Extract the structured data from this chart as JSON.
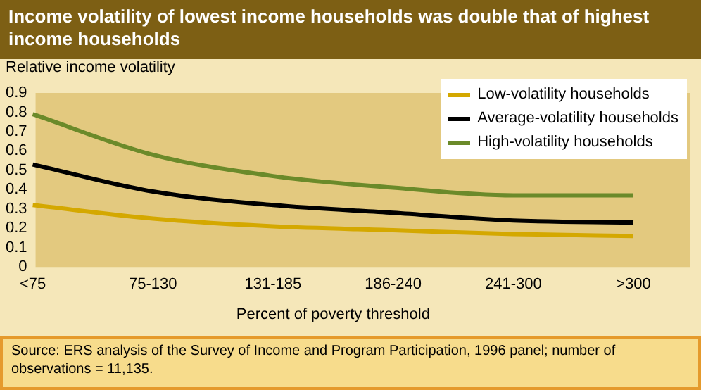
{
  "chart_data": {
    "type": "line",
    "title": "Income volatility of lowest income households was double that of highest income households",
    "ylabel": "Relative income volatility",
    "xlabel": "Percent of poverty threshold",
    "categories": [
      "<75",
      "75-130",
      "131-185",
      "186-240",
      "241-300",
      ">300"
    ],
    "series": [
      {
        "name": "Low-volatility households",
        "color": "#d4a800",
        "values": [
          0.32,
          0.25,
          0.21,
          0.19,
          0.17,
          0.16
        ]
      },
      {
        "name": "Average-volatility households",
        "color": "#000000",
        "values": [
          0.53,
          0.39,
          0.32,
          0.28,
          0.24,
          0.23
        ]
      },
      {
        "name": "High-volatility households",
        "color": "#6b8a2a",
        "values": [
          0.79,
          0.58,
          0.47,
          0.41,
          0.37,
          0.37
        ]
      }
    ],
    "ylim": [
      0,
      0.9
    ],
    "yticks": [
      0,
      0.1,
      0.2,
      0.3,
      0.4,
      0.5,
      0.6,
      0.7,
      0.8,
      0.9
    ],
    "grid": false,
    "legend": "top right",
    "marker": "none",
    "line_style": "solid",
    "annotations": [
      "Source:  ERS analysis of the Survey of Income and Program Participation, 1996 panel; number of observations = 11,135."
    ]
  }
}
